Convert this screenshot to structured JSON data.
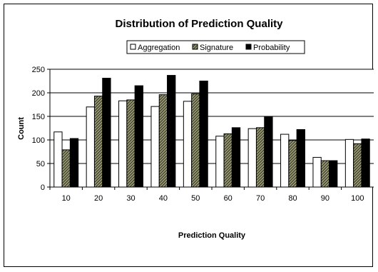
{
  "chart_data": {
    "type": "bar",
    "title": "Distribution of Prediction Quality",
    "xlabel": "Prediction Quality",
    "ylabel": "Count",
    "categories": [
      "10",
      "20",
      "30",
      "40",
      "50",
      "60",
      "70",
      "80",
      "90",
      "100"
    ],
    "ylim": [
      0,
      250
    ],
    "yticks": [
      "0",
      "50",
      "100",
      "150",
      "200",
      "250"
    ],
    "grid": true,
    "legend_position": "top",
    "series": [
      {
        "name": "Aggregation",
        "values": [
          117,
          170,
          183,
          171,
          182,
          108,
          124,
          112,
          63,
          101
        ],
        "color": "#ffffff",
        "pattern": "none"
      },
      {
        "name": "Signature",
        "values": [
          79,
          193,
          185,
          196,
          198,
          113,
          126,
          99,
          56,
          92
        ],
        "color": "#808060",
        "pattern": "hatch"
      },
      {
        "name": "Probability",
        "values": [
          103,
          231,
          215,
          237,
          225,
          126,
          150,
          122,
          56,
          102
        ],
        "color": "#000000",
        "pattern": "none"
      }
    ]
  }
}
